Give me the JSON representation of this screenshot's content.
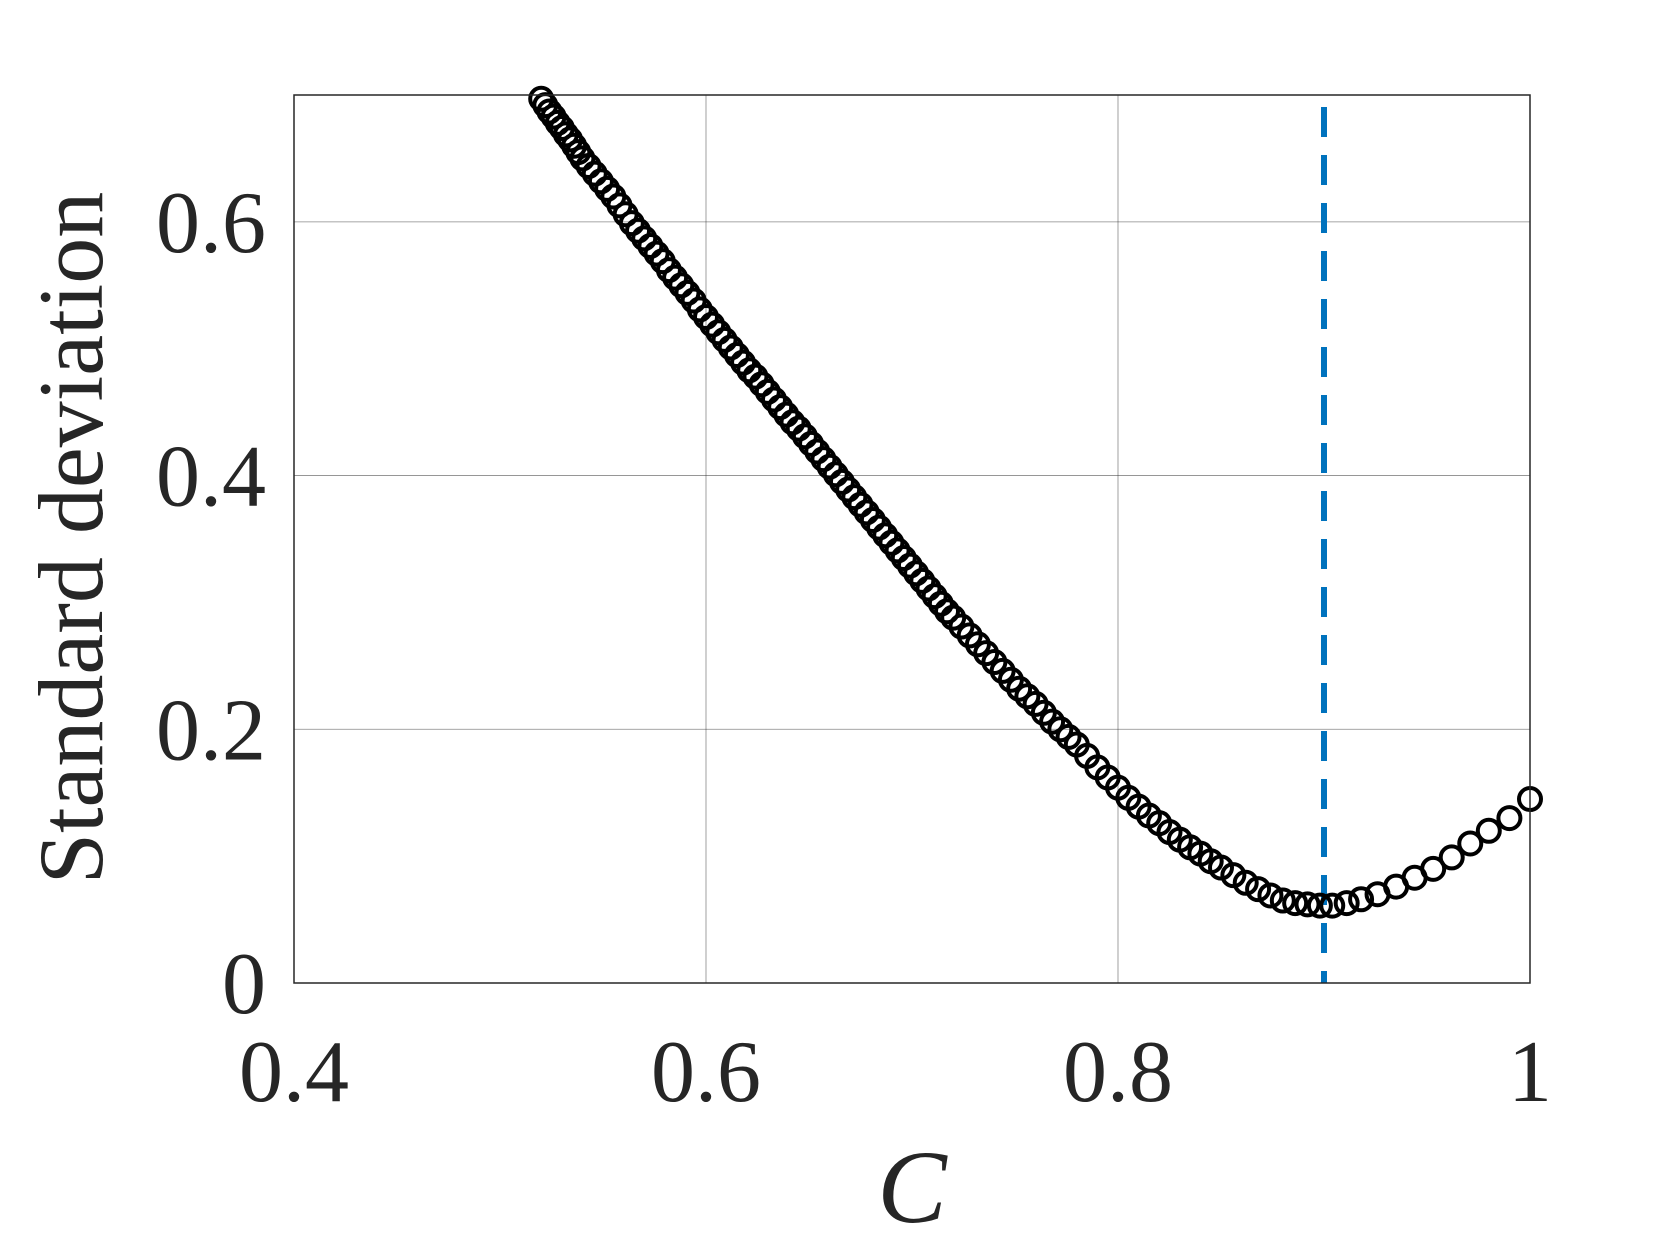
{
  "chart_data": {
    "type": "scatter",
    "xlabel": "C",
    "ylabel": "Standard deviation",
    "xlim": [
      0.4,
      1.0
    ],
    "ylim": [
      0,
      0.7
    ],
    "xticks": [
      {
        "value": 0.4,
        "label": "0.4"
      },
      {
        "value": 0.6,
        "label": "0.6"
      },
      {
        "value": 0.8,
        "label": "0.8"
      },
      {
        "value": 1.0,
        "label": "1"
      }
    ],
    "yticks": [
      {
        "value": 0,
        "label": "0"
      },
      {
        "value": 0.2,
        "label": "0.2"
      },
      {
        "value": 0.4,
        "label": "0.4"
      },
      {
        "value": 0.6,
        "label": "0.6"
      }
    ],
    "grid": true,
    "marker": "open-circle",
    "marker_color": "#000000",
    "reference_line": {
      "x": 0.9,
      "style": "dashed",
      "color": "#0072BD"
    },
    "series": [
      {
        "points": [
          [
            0.52,
            0.697
          ],
          [
            0.522,
            0.692
          ],
          [
            0.524,
            0.687
          ],
          [
            0.526,
            0.683
          ],
          [
            0.528,
            0.678
          ],
          [
            0.53,
            0.674
          ],
          [
            0.532,
            0.669
          ],
          [
            0.534,
            0.665
          ],
          [
            0.536,
            0.66
          ],
          [
            0.538,
            0.655
          ],
          [
            0.54,
            0.65
          ],
          [
            0.543,
            0.644
          ],
          [
            0.546,
            0.638
          ],
          [
            0.549,
            0.632
          ],
          [
            0.552,
            0.626
          ],
          [
            0.555,
            0.62
          ],
          [
            0.558,
            0.613
          ],
          [
            0.561,
            0.606
          ],
          [
            0.564,
            0.599
          ],
          [
            0.567,
            0.593
          ],
          [
            0.57,
            0.587
          ],
          [
            0.573,
            0.581
          ],
          [
            0.576,
            0.575
          ],
          [
            0.579,
            0.569
          ],
          [
            0.582,
            0.562
          ],
          [
            0.585,
            0.556
          ],
          [
            0.588,
            0.55
          ],
          [
            0.591,
            0.544
          ],
          [
            0.594,
            0.538
          ],
          [
            0.597,
            0.531
          ],
          [
            0.6,
            0.525
          ],
          [
            0.603,
            0.519
          ],
          [
            0.606,
            0.513
          ],
          [
            0.609,
            0.507
          ],
          [
            0.612,
            0.501
          ],
          [
            0.615,
            0.495
          ],
          [
            0.618,
            0.489
          ],
          [
            0.621,
            0.483
          ],
          [
            0.624,
            0.478
          ],
          [
            0.627,
            0.472
          ],
          [
            0.63,
            0.466
          ],
          [
            0.633,
            0.46
          ],
          [
            0.636,
            0.454
          ],
          [
            0.639,
            0.448
          ],
          [
            0.642,
            0.442
          ],
          [
            0.645,
            0.437
          ],
          [
            0.648,
            0.431
          ],
          [
            0.651,
            0.425
          ],
          [
            0.654,
            0.419
          ],
          [
            0.657,
            0.413
          ],
          [
            0.66,
            0.407
          ],
          [
            0.663,
            0.401
          ],
          [
            0.666,
            0.395
          ],
          [
            0.669,
            0.389
          ],
          [
            0.672,
            0.383
          ],
          [
            0.675,
            0.377
          ],
          [
            0.678,
            0.371
          ],
          [
            0.681,
            0.365
          ],
          [
            0.684,
            0.359
          ],
          [
            0.687,
            0.353
          ],
          [
            0.69,
            0.347
          ],
          [
            0.693,
            0.341
          ],
          [
            0.696,
            0.335
          ],
          [
            0.699,
            0.329
          ],
          [
            0.702,
            0.323
          ],
          [
            0.705,
            0.317
          ],
          [
            0.708,
            0.311
          ],
          [
            0.711,
            0.305
          ],
          [
            0.714,
            0.299
          ],
          [
            0.717,
            0.293
          ],
          [
            0.72,
            0.288
          ],
          [
            0.724,
            0.281
          ],
          [
            0.728,
            0.274
          ],
          [
            0.732,
            0.267
          ],
          [
            0.736,
            0.26
          ],
          [
            0.74,
            0.253
          ],
          [
            0.744,
            0.246
          ],
          [
            0.748,
            0.239
          ],
          [
            0.752,
            0.232
          ],
          [
            0.756,
            0.226
          ],
          [
            0.76,
            0.22
          ],
          [
            0.764,
            0.213
          ],
          [
            0.768,
            0.206
          ],
          [
            0.772,
            0.2
          ],
          [
            0.776,
            0.194
          ],
          [
            0.78,
            0.188
          ],
          [
            0.785,
            0.179
          ],
          [
            0.79,
            0.17
          ],
          [
            0.795,
            0.162
          ],
          [
            0.8,
            0.154
          ],
          [
            0.805,
            0.146
          ],
          [
            0.81,
            0.139
          ],
          [
            0.815,
            0.132
          ],
          [
            0.82,
            0.126
          ],
          [
            0.825,
            0.119
          ],
          [
            0.83,
            0.113
          ],
          [
            0.835,
            0.107
          ],
          [
            0.84,
            0.102
          ],
          [
            0.845,
            0.096
          ],
          [
            0.85,
            0.091
          ],
          [
            0.856,
            0.085
          ],
          [
            0.862,
            0.079
          ],
          [
            0.868,
            0.074
          ],
          [
            0.874,
            0.069
          ],
          [
            0.88,
            0.065
          ],
          [
            0.886,
            0.063
          ],
          [
            0.892,
            0.062
          ],
          [
            0.898,
            0.061
          ],
          [
            0.904,
            0.061
          ],
          [
            0.911,
            0.063
          ],
          [
            0.918,
            0.066
          ],
          [
            0.926,
            0.07
          ],
          [
            0.935,
            0.076
          ],
          [
            0.944,
            0.083
          ],
          [
            0.953,
            0.09
          ],
          [
            0.962,
            0.099
          ],
          [
            0.971,
            0.11
          ],
          [
            0.98,
            0.12
          ],
          [
            0.99,
            0.13
          ],
          [
            1.0,
            0.145
          ]
        ]
      }
    ]
  }
}
